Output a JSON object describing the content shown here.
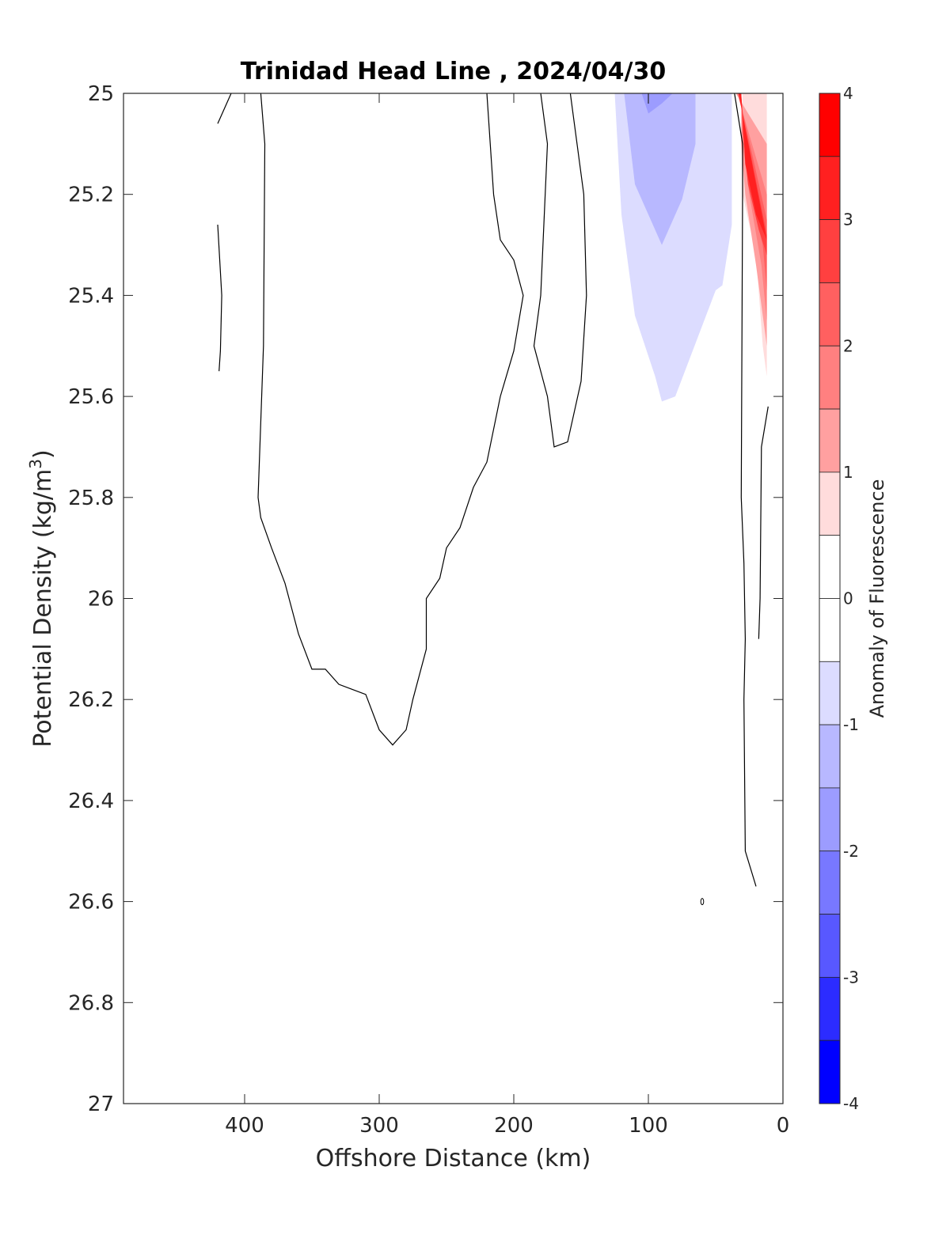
{
  "chart_data": {
    "type": "contour",
    "title": "Trinidad Head Line , 2024/04/30",
    "xlabel": "Offshore Distance (km)",
    "ylabel": "Potential Density (kg/m",
    "ylabel_sup": "3",
    "ylabel_close": ")",
    "xlim": [
      490,
      0
    ],
    "ylim": [
      25,
      27
    ],
    "x_reversed": true,
    "y_reversed": true,
    "xticks": [
      {
        "value": 400,
        "label": "400"
      },
      {
        "value": 300,
        "label": "300"
      },
      {
        "value": 200,
        "label": "200"
      },
      {
        "value": 100,
        "label": "100"
      },
      {
        "value": 0,
        "label": "0"
      }
    ],
    "yticks": [
      {
        "value": 25,
        "label": "25"
      },
      {
        "value": 25.2,
        "label": "25.2"
      },
      {
        "value": 25.4,
        "label": "25.4"
      },
      {
        "value": 25.6,
        "label": "25.6"
      },
      {
        "value": 25.8,
        "label": "25.8"
      },
      {
        "value": 26,
        "label": "26"
      },
      {
        "value": 26.2,
        "label": "26.2"
      },
      {
        "value": 26.4,
        "label": "26.4"
      },
      {
        "value": 26.6,
        "label": "26.6"
      },
      {
        "value": 26.8,
        "label": "26.8"
      },
      {
        "value": 27,
        "label": "27"
      }
    ],
    "colorbar": {
      "label": "Anomaly of Fluorescence",
      "range": [
        -4,
        4
      ],
      "ticks": [
        {
          "value": 4,
          "label": "4"
        },
        {
          "value": 3,
          "label": "3"
        },
        {
          "value": 2,
          "label": "2"
        },
        {
          "value": 1,
          "label": "1"
        },
        {
          "value": 0,
          "label": "0"
        },
        {
          "value": -1,
          "label": "-1"
        },
        {
          "value": -2,
          "label": "-2"
        },
        {
          "value": -3,
          "label": "-3"
        },
        {
          "value": -4,
          "label": "-4"
        }
      ],
      "levels": [
        {
          "from": 3.5,
          "to": 4,
          "color": "#ff0000"
        },
        {
          "from": 3,
          "to": 3.5,
          "color": "#ff2020"
        },
        {
          "from": 2.5,
          "to": 3,
          "color": "#ff4040"
        },
        {
          "from": 2,
          "to": 2.5,
          "color": "#ff6060"
        },
        {
          "from": 1.5,
          "to": 2,
          "color": "#ff8080"
        },
        {
          "from": 1,
          "to": 1.5,
          "color": "#ffa0a0"
        },
        {
          "from": 0.5,
          "to": 1,
          "color": "#ffdcdc"
        },
        {
          "from": 0,
          "to": 0.5,
          "color": "#ffffff"
        },
        {
          "from": -0.5,
          "to": 0,
          "color": "#ffffff"
        },
        {
          "from": -1,
          "to": -0.5,
          "color": "#dcdcff"
        },
        {
          "from": -1.5,
          "to": -1,
          "color": "#b8b8ff"
        },
        {
          "from": -2,
          "to": -1.5,
          "color": "#9c9cff"
        },
        {
          "from": -2.5,
          "to": -2,
          "color": "#7878ff"
        },
        {
          "from": -3,
          "to": -2.5,
          "color": "#5858ff"
        },
        {
          "from": -3.5,
          "to": -3,
          "color": "#2c2cff"
        },
        {
          "from": -4,
          "to": -3.5,
          "color": "#0000ff"
        }
      ]
    },
    "filled_regions": [
      {
        "level": -1,
        "color": "#dcdcff",
        "points": [
          [
            125,
            25
          ],
          [
            38,
            25
          ],
          [
            38,
            25.26
          ],
          [
            45,
            25.38
          ],
          [
            50,
            25.39
          ],
          [
            60,
            25.46
          ],
          [
            80,
            25.6
          ],
          [
            90,
            25.61
          ],
          [
            95,
            25.56
          ],
          [
            110,
            25.44
          ],
          [
            120,
            25.24
          ],
          [
            125,
            25
          ]
        ]
      },
      {
        "level": -1.5,
        "color": "#b8b8ff",
        "points": [
          [
            118,
            25
          ],
          [
            65,
            25
          ],
          [
            65,
            25.1
          ],
          [
            75,
            25.21
          ],
          [
            90,
            25.3
          ],
          [
            100,
            25.24
          ],
          [
            110,
            25.18
          ],
          [
            118,
            25
          ]
        ]
      },
      {
        "level": -2,
        "color": "#9c9cff",
        "points": [
          [
            105,
            25
          ],
          [
            82,
            25
          ],
          [
            90,
            25.02
          ],
          [
            100,
            25.04
          ],
          [
            105,
            25
          ]
        ]
      },
      {
        "level": 1,
        "color": "#ffdcdc",
        "points": [
          [
            38,
            25
          ],
          [
            30,
            25
          ],
          [
            31,
            25.1
          ],
          [
            30,
            25.2
          ],
          [
            20,
            25.32
          ],
          [
            15,
            25.5
          ],
          [
            12,
            25.56
          ],
          [
            12,
            25
          ],
          [
            38,
            25
          ]
        ]
      },
      {
        "level": 1.5,
        "color": "#ffa0a0",
        "points": [
          [
            35,
            25
          ],
          [
            31,
            25
          ],
          [
            31,
            25.1
          ],
          [
            28,
            25.2
          ],
          [
            20,
            25.34
          ],
          [
            12,
            25.5
          ],
          [
            12,
            25.1
          ],
          [
            35,
            25
          ]
        ]
      },
      {
        "level": 2,
        "color": "#ff8080",
        "points": [
          [
            34,
            25
          ],
          [
            31,
            25
          ],
          [
            30,
            25.1
          ],
          [
            25,
            25.2
          ],
          [
            16,
            25.34
          ],
          [
            12,
            25.45
          ],
          [
            12,
            25.2
          ],
          [
            34,
            25
          ]
        ]
      },
      {
        "level": 2.5,
        "color": "#ff6060",
        "points": [
          [
            33,
            25
          ],
          [
            31,
            25
          ],
          [
            30,
            25.08
          ],
          [
            24,
            25.2
          ],
          [
            15,
            25.3
          ],
          [
            12,
            25.39
          ],
          [
            12,
            25.25
          ],
          [
            33,
            25
          ]
        ]
      },
      {
        "level": 3,
        "color": "#ff4040",
        "points": [
          [
            33,
            25
          ],
          [
            31,
            25
          ],
          [
            30,
            25.07
          ],
          [
            26,
            25.18
          ],
          [
            18,
            25.27
          ],
          [
            12,
            25.32
          ],
          [
            12,
            25.28
          ],
          [
            33,
            25
          ]
        ]
      },
      {
        "level": 3.5,
        "color": "#ff2020",
        "points": [
          [
            33,
            25
          ],
          [
            31,
            25
          ],
          [
            30,
            25.04
          ],
          [
            28,
            25.14
          ],
          [
            20,
            25.24
          ],
          [
            12,
            25.29
          ],
          [
            33,
            25
          ]
        ]
      }
    ],
    "contour_lines": [
      [
        [
          420,
          25.06
        ],
        [
          410,
          25
        ]
      ],
      [
        [
          420,
          25.26
        ],
        [
          417,
          25.4
        ],
        [
          418,
          25.51
        ],
        [
          419,
          25.55
        ]
      ],
      [
        [
          388,
          25
        ],
        [
          385,
          25.1
        ],
        [
          386,
          25.5
        ],
        [
          390,
          25.8
        ],
        [
          388,
          25.84
        ],
        [
          380,
          25.9
        ],
        [
          370,
          25.97
        ],
        [
          360,
          26.07
        ],
        [
          350,
          26.14
        ],
        [
          340,
          26.14
        ],
        [
          330,
          26.17
        ],
        [
          320,
          26.18
        ],
        [
          310,
          26.19
        ],
        [
          300,
          26.26
        ],
        [
          290,
          26.29
        ],
        [
          280,
          26.26
        ],
        [
          275,
          26.2
        ],
        [
          265,
          26.1
        ],
        [
          265,
          26
        ],
        [
          255,
          25.96
        ],
        [
          250,
          25.9
        ],
        [
          240,
          25.86
        ],
        [
          230,
          25.78
        ],
        [
          220,
          25.73
        ],
        [
          210,
          25.6
        ],
        [
          200,
          25.51
        ],
        [
          193,
          25.4
        ],
        [
          200,
          25.33
        ],
        [
          210,
          25.29
        ],
        [
          215,
          25.2
        ],
        [
          220,
          25
        ]
      ],
      [
        [
          180,
          25
        ],
        [
          175,
          25.1
        ],
        [
          180,
          25.4
        ],
        [
          185,
          25.5
        ],
        [
          175,
          25.6
        ],
        [
          170,
          25.7
        ],
        [
          160,
          25.69
        ],
        [
          150,
          25.57
        ],
        [
          146,
          25.4
        ],
        [
          148,
          25.2
        ],
        [
          155,
          25.06
        ],
        [
          158,
          25
        ]
      ],
      [
        [
          100,
          25
        ],
        [
          100,
          25.02
        ]
      ],
      [
        [
          36,
          25
        ],
        [
          30,
          25.1
        ],
        [
          30,
          25.2
        ],
        [
          31,
          25.8
        ],
        [
          29,
          25.93
        ],
        [
          28,
          26.08
        ],
        [
          29,
          26.2
        ],
        [
          28,
          26.5
        ],
        [
          20,
          26.57
        ]
      ],
      [
        [
          11,
          25.62
        ],
        [
          16,
          25.7
        ],
        [
          17,
          26
        ],
        [
          18,
          26.08
        ]
      ]
    ],
    "markers": [
      {
        "x": 60,
        "y": 26.6
      }
    ]
  }
}
